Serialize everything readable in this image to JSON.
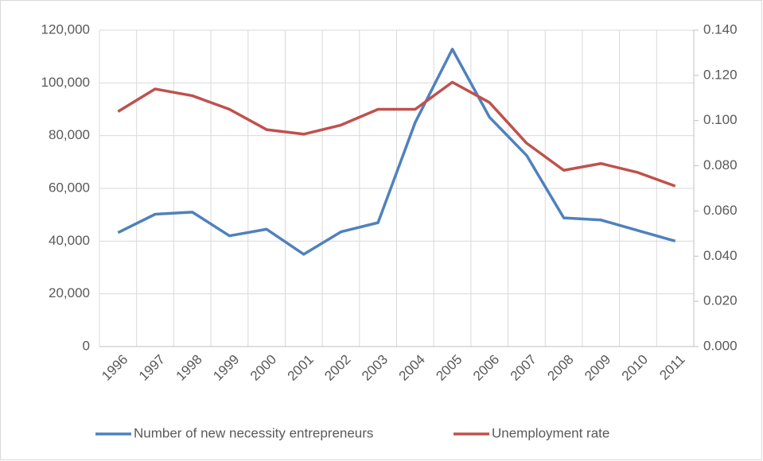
{
  "chart_data": {
    "type": "line",
    "categories": [
      "1996",
      "1997",
      "1998",
      "1999",
      "2000",
      "2001",
      "2002",
      "2003",
      "2004",
      "2005",
      "2006",
      "2007",
      "2008",
      "2009",
      "2010",
      "2011"
    ],
    "series": [
      {
        "name": "Number of new necessity entrepreneurs",
        "color": "#4f81bd",
        "values": [
          43200,
          50200,
          51000,
          42000,
          44500,
          35000,
          43500,
          47000,
          85000,
          112800,
          87000,
          72500,
          48800,
          48000,
          44000,
          40000
        ]
      },
      {
        "name": "Unemployment rate",
        "color": "#c0504d",
        "axis": "y2",
        "values": [
          0.104,
          0.114,
          0.111,
          0.105,
          0.096,
          0.094,
          0.098,
          0.105,
          0.105,
          0.117,
          0.108,
          0.09,
          0.078,
          0.081,
          0.077,
          0.071
        ]
      }
    ],
    "ylim": [
      0,
      120000
    ],
    "yticks": [
      0,
      {
        "value": 20000,
        "label": "20,000"
      },
      {
        "value": 40000,
        "label": "40,000"
      },
      {
        "value": 60000,
        "label": "60,000"
      },
      {
        "value": 80000,
        "label": "80,000"
      },
      {
        "value": 100000,
        "label": "100,000"
      },
      {
        "value": 120000,
        "label": "120,000"
      }
    ],
    "y2lim": [
      0,
      0.14
    ],
    "y2ticks": [
      {
        "value": 0,
        "label": "0.000"
      },
      {
        "value": 0.02,
        "label": "0.020"
      },
      {
        "value": 0.04,
        "label": "0.040"
      },
      {
        "value": 0.06,
        "label": "0.060"
      },
      {
        "value": 0.08,
        "label": "0.080"
      },
      {
        "value": 0.1,
        "label": "0.100"
      },
      {
        "value": 0.12,
        "label": "0.120"
      },
      {
        "value": 0.14,
        "label": "0.140"
      }
    ],
    "grid": true,
    "legend": "bottom"
  }
}
